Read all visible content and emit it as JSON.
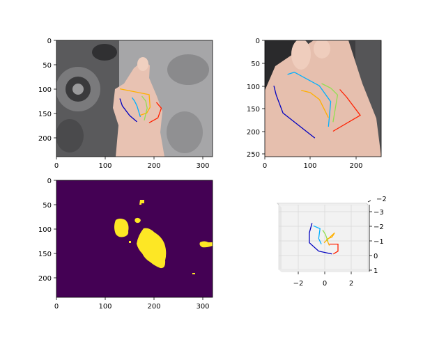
{
  "chart_data": [
    {
      "type": "image",
      "content": "rgb photo of hand with 2D keypoint skeleton overlay",
      "xticks": [
        "0",
        "100",
        "200",
        "300"
      ],
      "yticks": [
        "0",
        "50",
        "100",
        "150",
        "200"
      ],
      "xlim": [
        0,
        320
      ],
      "ylim": [
        240,
        0
      ],
      "skeleton": {
        "thumb": [
          [
            190,
            170
          ],
          [
            208,
            160
          ],
          [
            215,
            140
          ],
          [
            205,
            128
          ]
        ],
        "index": [
          [
            170,
            155
          ],
          [
            185,
            150
          ],
          [
            192,
            138
          ],
          [
            190,
            112
          ],
          [
            130,
            100
          ]
        ],
        "middle": [
          [
            180,
            165
          ],
          [
            186,
            140
          ],
          [
            183,
            125
          ],
          [
            175,
            115
          ]
        ],
        "ring": [
          [
            172,
            158
          ],
          [
            165,
            135
          ],
          [
            160,
            125
          ],
          [
            155,
            118
          ]
        ],
        "little": [
          [
            165,
            168
          ],
          [
            150,
            155
          ],
          [
            135,
            135
          ],
          [
            130,
            120
          ]
        ]
      }
    },
    {
      "type": "image",
      "content": "cropped rgb photo of hand with 2D keypoint skeleton overlay",
      "xticks": [
        "0",
        "100",
        "200"
      ],
      "yticks": [
        "0",
        "50",
        "100",
        "150",
        "200",
        "250"
      ],
      "xlim": [
        0,
        256
      ],
      "ylim": [
        256,
        0
      ],
      "skeleton": {
        "thumb": [
          [
            150,
            200
          ],
          [
            210,
            165
          ],
          [
            180,
            125
          ],
          [
            165,
            108
          ]
        ],
        "index": [
          [
            140,
            190
          ],
          [
            145,
            135
          ],
          [
            120,
            100
          ],
          [
            65,
            70
          ],
          [
            50,
            75
          ]
        ],
        "middle": [
          [
            150,
            180
          ],
          [
            160,
            120
          ],
          [
            145,
            105
          ],
          [
            125,
            95
          ]
        ],
        "ring": [
          [
            140,
            170
          ],
          [
            120,
            130
          ],
          [
            100,
            115
          ],
          [
            80,
            110
          ]
        ],
        "little": [
          [
            110,
            215
          ],
          [
            40,
            160
          ],
          [
            25,
            120
          ],
          [
            20,
            100
          ]
        ]
      }
    },
    {
      "type": "heatmap",
      "content": "binary hand segmentation mask, viridis colormap",
      "xticks": [
        "0",
        "100",
        "200",
        "300"
      ],
      "yticks": [
        "0",
        "50",
        "100",
        "150",
        "200"
      ],
      "xlim": [
        0,
        320
      ],
      "ylim": [
        240,
        0
      ],
      "colors": {
        "background": "#440154",
        "foreground": "#fde725"
      }
    },
    {
      "type": "line",
      "content": "3D hand keypoint skeleton",
      "xticks": [
        "−2",
        "0",
        "2"
      ],
      "yticks": [
        "−3",
        "−2",
        "−1",
        "0",
        "1"
      ],
      "zticks": [
        "−2"
      ],
      "xlim": [
        -3.5,
        3.2
      ],
      "ylim": [
        -3.4,
        1.2
      ],
      "series": [
        {
          "color": "#ff2000",
          "points": [
            [
              0.6,
              0.1
            ],
            [
              0.95,
              -0.1
            ],
            [
              0.95,
              -0.6
            ],
            [
              0.3,
              -0.6
            ]
          ]
        },
        {
          "color": "#ffb000",
          "points": [
            [
              0.3,
              -0.5
            ],
            [
              0.1,
              -0.95
            ],
            [
              0.5,
              -1.1
            ],
            [
              0.7,
              -1.4
            ],
            [
              -0.1,
              -0.7
            ]
          ]
        },
        {
          "color": "#90e050",
          "points": [
            [
              0.2,
              -0.8
            ],
            [
              0.0,
              -1.3
            ],
            [
              -0.2,
              -1.6
            ]
          ]
        },
        {
          "color": "#00b0ff",
          "points": [
            [
              -0.3,
              -0.6
            ],
            [
              -0.5,
              -1.0
            ],
            [
              -0.4,
              -1.7
            ],
            [
              -0.9,
              -1.9
            ]
          ]
        },
        {
          "color": "#0000c0",
          "points": [
            [
              0.5,
              0.1
            ],
            [
              -0.5,
              -0.1
            ],
            [
              -1.2,
              -0.7
            ],
            [
              -1.2,
              -1.4
            ],
            [
              -1.0,
              -2.1
            ]
          ]
        }
      ]
    }
  ]
}
